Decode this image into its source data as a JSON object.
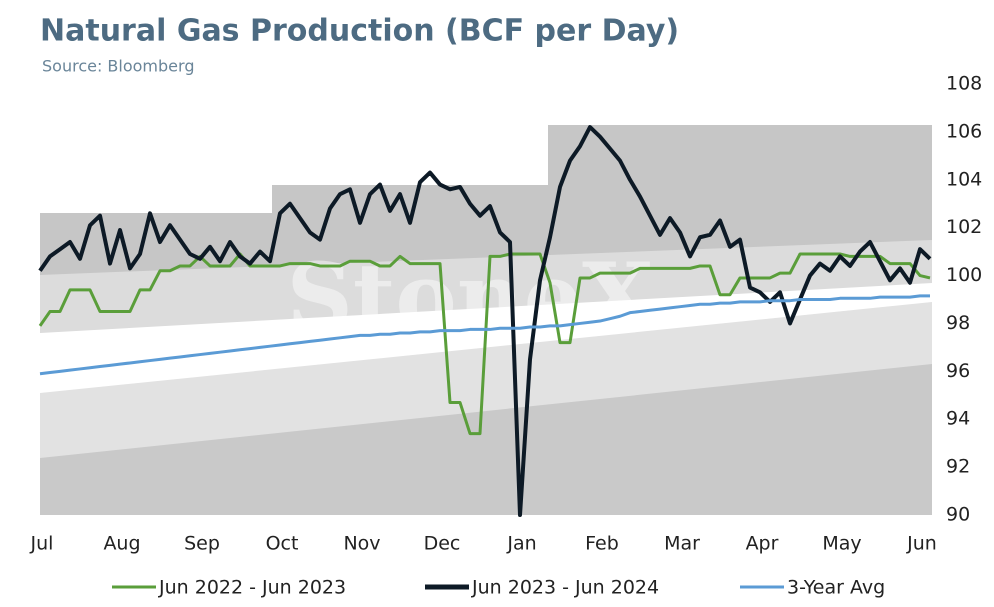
{
  "chart_data": {
    "type": "line",
    "title": "Natural Gas Production (BCF per Day)",
    "subtitle": "Source: Bloomberg",
    "watermark": "StoneX",
    "categories": [
      "Jul",
      null,
      null,
      null,
      null,
      null,
      null,
      null,
      "Aug",
      null,
      null,
      null,
      null,
      null,
      null,
      null,
      "Sep",
      null,
      null,
      null,
      null,
      null,
      null,
      null,
      "Oct",
      null,
      null,
      null,
      null,
      null,
      null,
      null,
      "Nov",
      null,
      null,
      null,
      null,
      null,
      null,
      null,
      "Dec",
      null,
      null,
      null,
      null,
      null,
      null,
      null,
      "Jan",
      null,
      null,
      null,
      null,
      null,
      null,
      null,
      "Feb",
      null,
      null,
      null,
      null,
      null,
      null,
      null,
      "Mar",
      null,
      null,
      null,
      null,
      null,
      null,
      null,
      "Apr",
      null,
      null,
      null,
      null,
      null,
      null,
      null,
      "May",
      null,
      null,
      null,
      null,
      null,
      null,
      null,
      "Jun",
      null
    ],
    "series": [
      {
        "name": "Jun 2022 - Jun 2023",
        "color": "#5a9e3a",
        "values": [
          97.9,
          98.5,
          98.5,
          99.4,
          99.4,
          99.4,
          98.5,
          98.5,
          98.5,
          98.5,
          99.4,
          99.4,
          100.2,
          100.2,
          100.4,
          100.4,
          100.8,
          100.4,
          100.4,
          100.4,
          100.9,
          100.4,
          100.4,
          100.4,
          100.4,
          100.5,
          100.5,
          100.5,
          100.4,
          100.4,
          100.4,
          100.6,
          100.6,
          100.6,
          100.4,
          100.4,
          100.8,
          100.5,
          100.5,
          100.5,
          100.5,
          94.7,
          94.7,
          93.4,
          93.4,
          100.8,
          100.8,
          100.9,
          100.9,
          100.9,
          100.9,
          99.7,
          97.2,
          97.2,
          99.9,
          99.9,
          100.1,
          100.1,
          100.1,
          100.1,
          100.3,
          100.3,
          100.3,
          100.3,
          100.3,
          100.3,
          100.4,
          100.4,
          99.2,
          99.2,
          99.9,
          99.9,
          99.9,
          99.9,
          100.1,
          100.1,
          100.9,
          100.9,
          100.9,
          100.9,
          100.9,
          100.8,
          100.8,
          100.8,
          100.8,
          100.5,
          100.5,
          100.5,
          100.0,
          99.9
        ]
      },
      {
        "name": "Jun 2023 - Jun 2024",
        "color": "#0d1a26",
        "values": [
          100.2,
          100.8,
          101.1,
          101.4,
          100.7,
          102.1,
          102.5,
          100.5,
          101.9,
          100.3,
          100.9,
          102.6,
          101.4,
          102.1,
          101.5,
          100.9,
          100.7,
          101.2,
          100.6,
          101.4,
          100.8,
          100.5,
          101.0,
          100.6,
          102.6,
          103.0,
          102.4,
          101.8,
          101.5,
          102.8,
          103.4,
          103.6,
          102.2,
          103.4,
          103.8,
          102.7,
          103.4,
          102.2,
          103.9,
          104.3,
          103.8,
          103.6,
          103.7,
          103.0,
          102.5,
          102.9,
          101.8,
          101.4,
          90.0,
          96.5,
          99.8,
          101.6,
          103.7,
          104.8,
          105.4,
          106.2,
          105.8,
          105.3,
          104.8,
          104.0,
          103.3,
          102.5,
          101.7,
          102.4,
          101.8,
          100.8,
          101.6,
          101.7,
          102.3,
          101.2,
          101.5,
          99.5,
          99.3,
          98.9,
          99.3,
          98.0,
          99.0,
          100.0,
          100.5,
          100.2,
          100.8,
          100.4,
          101.0,
          101.4,
          100.6,
          99.8,
          100.3,
          99.7,
          101.1,
          100.7
        ]
      },
      {
        "name": "3-Year Avg",
        "color": "#5b9bd5",
        "values": [
          95.9,
          95.95,
          96.0,
          96.05,
          96.1,
          96.15,
          96.2,
          96.25,
          96.3,
          96.35,
          96.4,
          96.45,
          96.5,
          96.55,
          96.6,
          96.65,
          96.7,
          96.75,
          96.8,
          96.85,
          96.9,
          96.95,
          97.0,
          97.05,
          97.1,
          97.15,
          97.2,
          97.25,
          97.3,
          97.35,
          97.4,
          97.45,
          97.5,
          97.5,
          97.55,
          97.55,
          97.6,
          97.6,
          97.65,
          97.65,
          97.7,
          97.7,
          97.7,
          97.75,
          97.75,
          97.75,
          97.8,
          97.8,
          97.8,
          97.85,
          97.85,
          97.9,
          97.9,
          97.95,
          98.0,
          98.05,
          98.1,
          98.2,
          98.3,
          98.45,
          98.5,
          98.55,
          98.6,
          98.65,
          98.7,
          98.75,
          98.8,
          98.8,
          98.85,
          98.85,
          98.9,
          98.9,
          98.9,
          98.95,
          98.95,
          98.95,
          99.0,
          99.0,
          99.0,
          99.0,
          99.05,
          99.05,
          99.05,
          99.05,
          99.1,
          99.1,
          99.1,
          99.1,
          99.15,
          99.15
        ]
      }
    ],
    "ylim": [
      90,
      108
    ],
    "yticks": [
      90,
      92,
      94,
      96,
      98,
      100,
      102,
      104,
      106,
      108
    ],
    "grid": false,
    "legend": "bottom"
  }
}
